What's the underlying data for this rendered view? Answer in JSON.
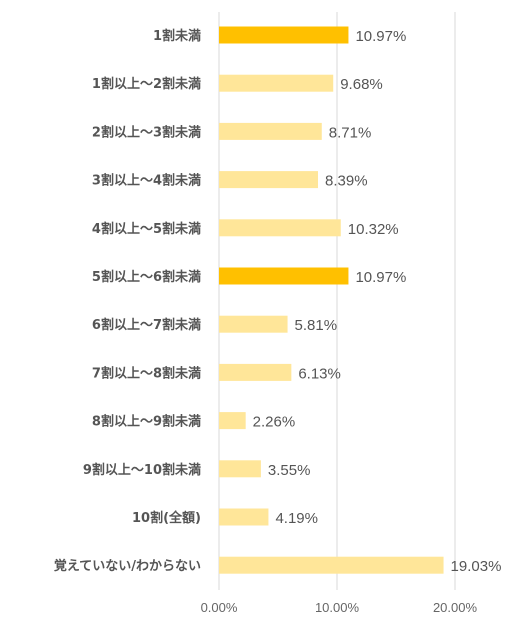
{
  "colors": {
    "bar_default": "#FFE699",
    "bar_highlight": "#FFC000"
  },
  "chart_data": {
    "type": "bar",
    "orientation": "horizontal",
    "categories": [
      "1割未満",
      "1割以上～2割未満",
      "2割以上～3割未満",
      "3割以上～4割未満",
      "4割以上～5割未満",
      "5割以上～6割未満",
      "6割以上～7割未満",
      "7割以上～8割未満",
      "8割以上～9割未満",
      "9割以上～10割未満",
      "10割(全額)",
      "覚えていない/わからない"
    ],
    "values": [
      10.97,
      9.68,
      8.71,
      8.39,
      10.32,
      10.97,
      5.81,
      6.13,
      2.26,
      3.55,
      4.19,
      19.03
    ],
    "value_labels": [
      "10.97%",
      "9.68%",
      "8.71%",
      "8.39%",
      "10.32%",
      "10.97%",
      "5.81%",
      "6.13%",
      "2.26%",
      "3.55%",
      "4.19%",
      "19.03%"
    ],
    "highlighted": [
      true,
      false,
      false,
      false,
      false,
      true,
      false,
      false,
      false,
      false,
      false,
      false
    ],
    "xlim": [
      0,
      20
    ],
    "xticks": [
      0,
      10,
      20
    ],
    "xtick_labels": [
      "0.00%",
      "10.00%",
      "20.00%"
    ],
    "grid": true,
    "legend": "none"
  }
}
